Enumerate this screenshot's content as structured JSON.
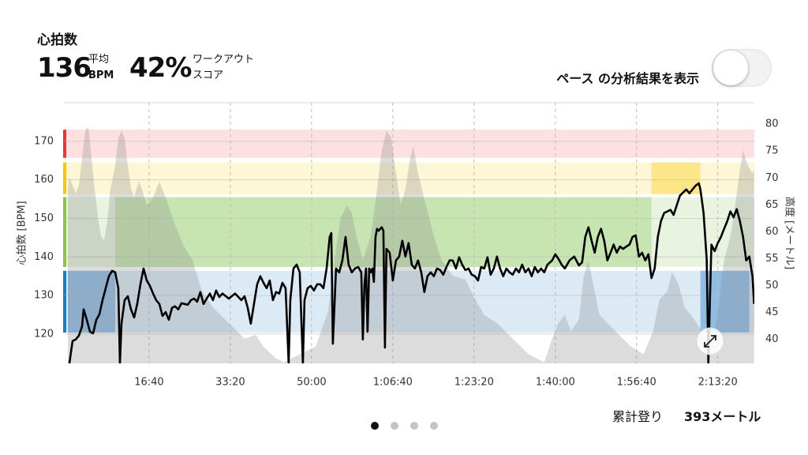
{
  "header": {
    "title": "心拍数",
    "avg_value": 136,
    "avg_label_1": "平均",
    "avg_label_2": "BPM",
    "score_value": "42%",
    "score_label_1": "ワークアウト",
    "score_label_2": "スコア"
  },
  "toggle": {
    "label": "ペース の分析結果を表示",
    "on": false
  },
  "footer": {
    "label": "累計登り",
    "value": "393メートル"
  },
  "pagination": {
    "count": 4,
    "active": 0
  },
  "chart_data": {
    "type": "line",
    "ylabel": "心拍数 [BPM]",
    "y2label": "高度 [メートル]",
    "xlim": [
      0,
      8450
    ],
    "ylim": [
      112.4,
      180
    ],
    "y2lim": [
      35.5,
      84
    ],
    "xticks": [
      {
        "value": 1000,
        "label": "16:40"
      },
      {
        "value": 2000,
        "label": "33:20"
      },
      {
        "value": 3000,
        "label": "50:00"
      },
      {
        "value": 4000,
        "label": "1:06:40"
      },
      {
        "value": 5000,
        "label": "1:23:20"
      },
      {
        "value": 6000,
        "label": "1:40:00"
      },
      {
        "value": 7000,
        "label": "1:56:40"
      },
      {
        "value": 8000,
        "label": "2:13:20"
      }
    ],
    "yticks": [
      120,
      130,
      140,
      150,
      160,
      170
    ],
    "y2ticks": [
      40,
      45,
      50,
      55,
      60,
      65,
      70,
      75,
      80
    ],
    "grid": true,
    "zones": [
      {
        "range": [
          120.4,
          136.4
        ],
        "color": "#1a7cc1",
        "light_color": "#dceaf6",
        "highlight_color": "#8ebce5"
      },
      {
        "range": [
          137.4,
          155.5
        ],
        "color": "#8bc34a",
        "light_color": "#e9f4e0",
        "highlight_color": "#c6e5b1"
      },
      {
        "range": [
          156.3,
          164.5
        ],
        "color": "#f5c518",
        "light_color": "#fdf7d6",
        "highlight_color": "#fde68a"
      },
      {
        "range": [
          165.7,
          173.0
        ],
        "color": "#e53935",
        "light_color": "#fde0e0",
        "highlight_color": "#fbcaca"
      }
    ],
    "segments": [
      {
        "xrange": [
          0,
          583
        ],
        "zone": 0
      },
      {
        "xrange": [
          583,
          7184
        ],
        "zone": 1
      },
      {
        "xrange": [
          7184,
          7786
        ],
        "zone": 2
      },
      {
        "xrange": [
          7786,
          8388
        ],
        "zone": 0
      }
    ],
    "series": [
      {
        "type": "area",
        "axis": "y2",
        "color": "#8c8c8c",
        "x": [
          0,
          19,
          58,
          97,
          136,
          175,
          214,
          252,
          291,
          330,
          369,
          408,
          447,
          485,
          524,
          583,
          621,
          660,
          699,
          738,
          777,
          816,
          874,
          913,
          971,
          1049,
          1126,
          1204,
          1301,
          1418,
          1534,
          1650,
          1786,
          1981,
          2175,
          2311,
          2408,
          2563,
          2660,
          2854,
          3049,
          3204,
          3282,
          3359,
          3437,
          3495,
          3553,
          3631,
          3728,
          3806,
          3864,
          3922,
          3981,
          4039,
          4097,
          4155,
          4214,
          4252,
          4311,
          4408,
          4505,
          4602,
          4738,
          4893,
          4990,
          5126,
          5282,
          5476,
          5670,
          5864,
          5961,
          6039,
          6117,
          6194,
          6291,
          6350,
          6408,
          6466,
          6544,
          6738,
          6932,
          7087,
          7204,
          7282,
          7379,
          7437,
          7515,
          7592,
          7670,
          7806,
          7884,
          7961,
          8020,
          8078,
          8155,
          8214,
          8272,
          8311,
          8369,
          8427,
          8447
        ],
        "values": [
          67.9,
          70.1,
          68.6,
          67.1,
          68.6,
          73.7,
          78.8,
          79.6,
          73.7,
          67.9,
          62.7,
          59.1,
          58.4,
          62.0,
          67.9,
          72.3,
          77.4,
          78.8,
          77.4,
          72.3,
          67.9,
          66.4,
          69.3,
          67.9,
          64.9,
          66.4,
          69.3,
          66.4,
          62.0,
          57.6,
          54.7,
          48.9,
          45.9,
          43.0,
          40.1,
          40.8,
          38.6,
          36.4,
          35.7,
          37.2,
          38.6,
          45.2,
          54.7,
          62.7,
          64.9,
          63.5,
          59.1,
          54.7,
          59.1,
          67.9,
          75.2,
          78.8,
          77.4,
          70.8,
          64.9,
          67.9,
          73.7,
          75.9,
          70.8,
          64.9,
          59.1,
          54.7,
          51.8,
          51.1,
          48.1,
          44.5,
          43.0,
          40.1,
          37.2,
          35.7,
          40.1,
          43.0,
          44.5,
          41.5,
          43.7,
          51.8,
          54.7,
          50.3,
          44.5,
          41.5,
          38.6,
          37.2,
          41.5,
          47.4,
          48.9,
          52.5,
          50.3,
          45.9,
          44.5,
          41.5,
          38.6,
          41.5,
          47.4,
          54.7,
          59.1,
          64.9,
          71.5,
          75.2,
          72.3,
          70.8,
          71.5
        ]
      },
      {
        "type": "line",
        "color": "#000000",
        "x": [
          19,
          58,
          97,
          136,
          175,
          194,
          233,
          272,
          311,
          350,
          388,
          427,
          466,
          505,
          544,
          583,
          621,
          641,
          660,
          699,
          738,
          777,
          816,
          854,
          893,
          932,
          971,
          1010,
          1049,
          1087,
          1126,
          1165,
          1204,
          1243,
          1282,
          1320,
          1359,
          1398,
          1437,
          1476,
          1515,
          1553,
          1592,
          1631,
          1670,
          1709,
          1748,
          1786,
          1825,
          1864,
          1903,
          1981,
          2058,
          2136,
          2175,
          2214,
          2252,
          2291,
          2330,
          2369,
          2408,
          2447,
          2485,
          2524,
          2563,
          2602,
          2641,
          2680,
          2718,
          2738,
          2777,
          2816,
          2854,
          2893,
          2913,
          2951,
          2990,
          3029,
          3068,
          3107,
          3146,
          3185,
          3223,
          3243,
          3262,
          3301,
          3340,
          3379,
          3418,
          3456,
          3495,
          3534,
          3573,
          3612,
          3631,
          3651,
          3670,
          3689,
          3709,
          3728,
          3748,
          3767,
          3787,
          3806,
          3825,
          3864,
          3884,
          3903,
          3922,
          3961,
          4000,
          4039,
          4078,
          4117,
          4155,
          4194,
          4233,
          4272,
          4311,
          4350,
          4388,
          4427,
          4466,
          4505,
          4544,
          4583,
          4621,
          4660,
          4699,
          4738,
          4777,
          4816,
          4854,
          4893,
          4932,
          4971,
          5010,
          5049,
          5087,
          5126,
          5165,
          5204,
          5243,
          5282,
          5320,
          5359,
          5398,
          5437,
          5476,
          5515,
          5553,
          5592,
          5631,
          5670,
          5709,
          5748,
          5786,
          5825,
          5864,
          5903,
          5961,
          6000,
          6039,
          6078,
          6117,
          6175,
          6233,
          6291,
          6330,
          6369,
          6408,
          6447,
          6485,
          6524,
          6563,
          6602,
          6641,
          6680,
          6718,
          6757,
          6796,
          6835,
          6874,
          6913,
          6951,
          6990,
          7029,
          7068,
          7107,
          7146,
          7184,
          7223,
          7262,
          7301,
          7340,
          7379,
          7418,
          7456,
          7495,
          7534,
          7573,
          7612,
          7651,
          7689,
          7728,
          7767,
          7786,
          7806,
          7825,
          7845,
          7864,
          7884,
          7903,
          7922,
          7961,
          8000,
          8039,
          8078,
          8117,
          8155,
          8194,
          8233,
          8272,
          8311,
          8350,
          8388,
          8427,
          8447
        ],
        "values": [
          112.4,
          118.2,
          118.6,
          119.6,
          122.0,
          126.4,
          123.7,
          120.6,
          120.2,
          123.7,
          125.1,
          128.8,
          131.9,
          135.0,
          136.4,
          136.0,
          131.9,
          112.4,
          122.7,
          128.8,
          129.8,
          126.4,
          124.3,
          127.8,
          132.9,
          137.0,
          133.9,
          132.5,
          130.5,
          128.8,
          127.8,
          124.7,
          125.7,
          123.7,
          126.8,
          127.2,
          126.4,
          128.0,
          127.8,
          127.6,
          128.8,
          129.2,
          128.4,
          130.9,
          127.8,
          129.2,
          130.5,
          128.8,
          131.3,
          129.6,
          130.5,
          129.2,
          130.5,
          128.8,
          129.8,
          126.8,
          122.7,
          127.8,
          132.9,
          135.0,
          133.3,
          131.9,
          133.9,
          128.8,
          130.9,
          130.5,
          133.3,
          131.9,
          112.4,
          128.8,
          137.0,
          138.0,
          136.0,
          112.4,
          128.8,
          131.9,
          132.5,
          131.3,
          132.9,
          132.9,
          131.9,
          137.0,
          145.2,
          146.2,
          117.5,
          137.0,
          136.0,
          139.1,
          145.2,
          138.0,
          136.0,
          137.0,
          137.4,
          136.0,
          118.6,
          132.9,
          137.0,
          120.6,
          137.0,
          136.0,
          137.0,
          133.5,
          145.2,
          147.3,
          146.8,
          147.7,
          146.8,
          116.5,
          142.1,
          141.1,
          133.9,
          139.1,
          140.1,
          144.2,
          140.1,
          143.6,
          138.0,
          137.0,
          139.1,
          136.0,
          130.9,
          135.0,
          136.0,
          135.0,
          137.0,
          136.6,
          135.4,
          137.4,
          139.1,
          139.1,
          137.0,
          139.9,
          138.0,
          136.6,
          137.0,
          135.4,
          135.0,
          133.9,
          137.4,
          137.0,
          139.9,
          135.4,
          137.0,
          140.1,
          137.0,
          135.0,
          137.0,
          136.0,
          135.4,
          137.0,
          136.0,
          138.0,
          136.0,
          137.0,
          135.0,
          137.4,
          136.0,
          137.0,
          136.0,
          138.0,
          139.1,
          140.7,
          139.5,
          138.0,
          137.0,
          139.1,
          140.1,
          137.8,
          138.6,
          145.2,
          147.7,
          144.2,
          141.1,
          145.2,
          147.3,
          144.2,
          139.1,
          141.1,
          143.2,
          141.1,
          142.7,
          142.1,
          142.7,
          143.2,
          145.2,
          145.6,
          140.1,
          141.1,
          139.1,
          140.7,
          134.5,
          137.0,
          145.2,
          149.3,
          151.4,
          151.8,
          152.2,
          150.9,
          153.4,
          155.9,
          156.7,
          157.5,
          156.5,
          157.5,
          158.5,
          159.1,
          157.5,
          154.4,
          151.4,
          145.2,
          139.1,
          112.4,
          128.8,
          143.2,
          141.5,
          143.6,
          145.2,
          147.3,
          149.3,
          151.8,
          150.3,
          152.4,
          149.3,
          145.2,
          139.1,
          140.1,
          135.0,
          127.8
        ]
      }
    ]
  }
}
